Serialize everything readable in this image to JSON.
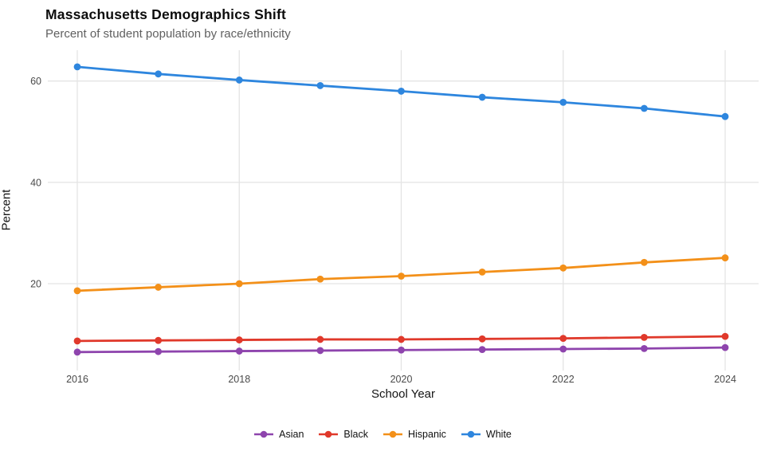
{
  "chart_data": {
    "type": "line",
    "title": "Massachusetts Demographics Shift",
    "subtitle": "Percent of student population by race/ethnicity",
    "xlabel": "School Year",
    "ylabel": "Percent",
    "x": [
      2016,
      2017,
      2018,
      2019,
      2020,
      2021,
      2022,
      2023,
      2024
    ],
    "x_ticks": [
      2016,
      2018,
      2020,
      2022,
      2024
    ],
    "y_ticks": [
      20,
      40,
      60
    ],
    "ylim": [
      3,
      66
    ],
    "xlim": [
      2015.65,
      2024.4
    ],
    "grid": true,
    "grid_color": "#e4e4e4",
    "tick_label_color": "#4a4a4a",
    "legend_position": "bottom",
    "series": [
      {
        "name": "Asian",
        "color": "#8E44AD",
        "values": [
          6.5,
          6.6,
          6.7,
          6.8,
          6.9,
          7.0,
          7.1,
          7.2,
          7.4
        ]
      },
      {
        "name": "Black",
        "color": "#E0392B",
        "values": [
          8.7,
          8.8,
          8.9,
          9.0,
          9.0,
          9.1,
          9.2,
          9.4,
          9.6
        ]
      },
      {
        "name": "Hispanic",
        "color": "#F39019",
        "values": [
          18.6,
          19.3,
          20.0,
          20.9,
          21.5,
          22.3,
          23.1,
          24.2,
          25.1
        ]
      },
      {
        "name": "White",
        "color": "#2E86DE",
        "values": [
          62.8,
          61.4,
          60.2,
          59.1,
          58.0,
          56.8,
          55.8,
          54.6,
          53.0
        ]
      }
    ]
  }
}
